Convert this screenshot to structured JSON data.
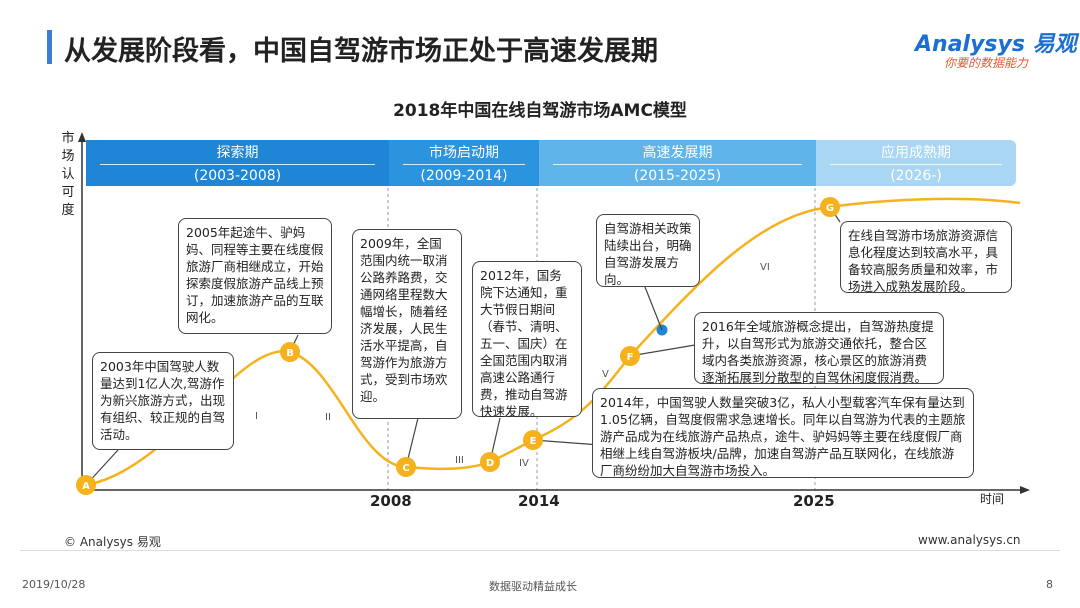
{
  "header": {
    "title": "从发展阶段看，中国自驾游市场正处于高速发展期",
    "logo_main": "Analysys 易观",
    "logo_sub": "你要的数据能力"
  },
  "chart_title": "2018年中国在线自驾游市场AMC模型",
  "axes": {
    "y_label": "市场认可度",
    "x_label": "时间",
    "ticks": [
      "2008",
      "2014",
      "2025"
    ]
  },
  "stages": [
    {
      "name": "探索期",
      "years": "(2003-2008)",
      "color": "#1f86d6"
    },
    {
      "name": "市场启动期",
      "years": "(2009-2014)",
      "color": "#2a94df"
    },
    {
      "name": "高速发展期",
      "years": "(2015-2025)",
      "color": "#5fb4ea"
    },
    {
      "name": "应用成熟期",
      "years": "(2026-)",
      "color": "#a8d6f3"
    }
  ],
  "points": [
    {
      "id": "A"
    },
    {
      "id": "B"
    },
    {
      "id": "C"
    },
    {
      "id": "D"
    },
    {
      "id": "E"
    },
    {
      "id": "F"
    },
    {
      "id": "G"
    }
  ],
  "phases": [
    "I",
    "II",
    "III",
    "IV",
    "V",
    "VI"
  ],
  "annotations": {
    "a": "2003年中国驾驶人数量达到1亿人次,驾游作为新兴旅游方式，出现有组织、较正规的自驾活动。",
    "b": "2005年起途牛、驴妈妈、同程等主要在线度假旅游厂商相继成立，开始探索度假旅游产品线上预订，加速旅游产品的互联网化。",
    "c": "2009年，全国范围内统一取消公路养路费，交通网络里程数大幅增长，随着经济发展，人民生活水平提高，自驾游作为旅游方式，受到市场欢迎。",
    "d": "2012年，国务院下达通知，重大节假日期间（春节、清明、五一、国庆）在全国范围内取消高速公路通行费，推动自驾游快速发展。",
    "policy": "自驾游相关政策陆续出台，明确自驾游发展方向。",
    "e": "2014年，中国驾驶人数量突破3亿，私人小型载客汽车保有量达到1.05亿辆，自驾度假需求急速增长。同年以自驾游为代表的主题旅游产品成为在线旅游产品热点，途牛、驴妈妈等主要在线度假厂商相继上线自驾游板块/品牌，加速自驾游产品互联网化，在线旅游厂商纷纷加大自驾游市场投入。",
    "f": "2016年全域旅游概念提出，自驾游热度提升，以自驾形式为旅游交通依托，整合区域内各类旅游资源，核心景区的旅游消费逐渐拓展到分散型的自驾休闲度假消费。",
    "g": "在线自驾游市场旅游资源信息化程度达到较高水平，具备较高服务质量和效率，市场进入成熟发展阶段。"
  },
  "footer": {
    "copyright": "© Analysys 易观",
    "website": "www.analysys.cn",
    "date": "2019/10/28",
    "slogan": "数据驱动精益成长",
    "page": "8"
  },
  "colors": {
    "curve": "#f5b21c",
    "point": "#f5b21c",
    "accent": "#3a7fd5"
  }
}
